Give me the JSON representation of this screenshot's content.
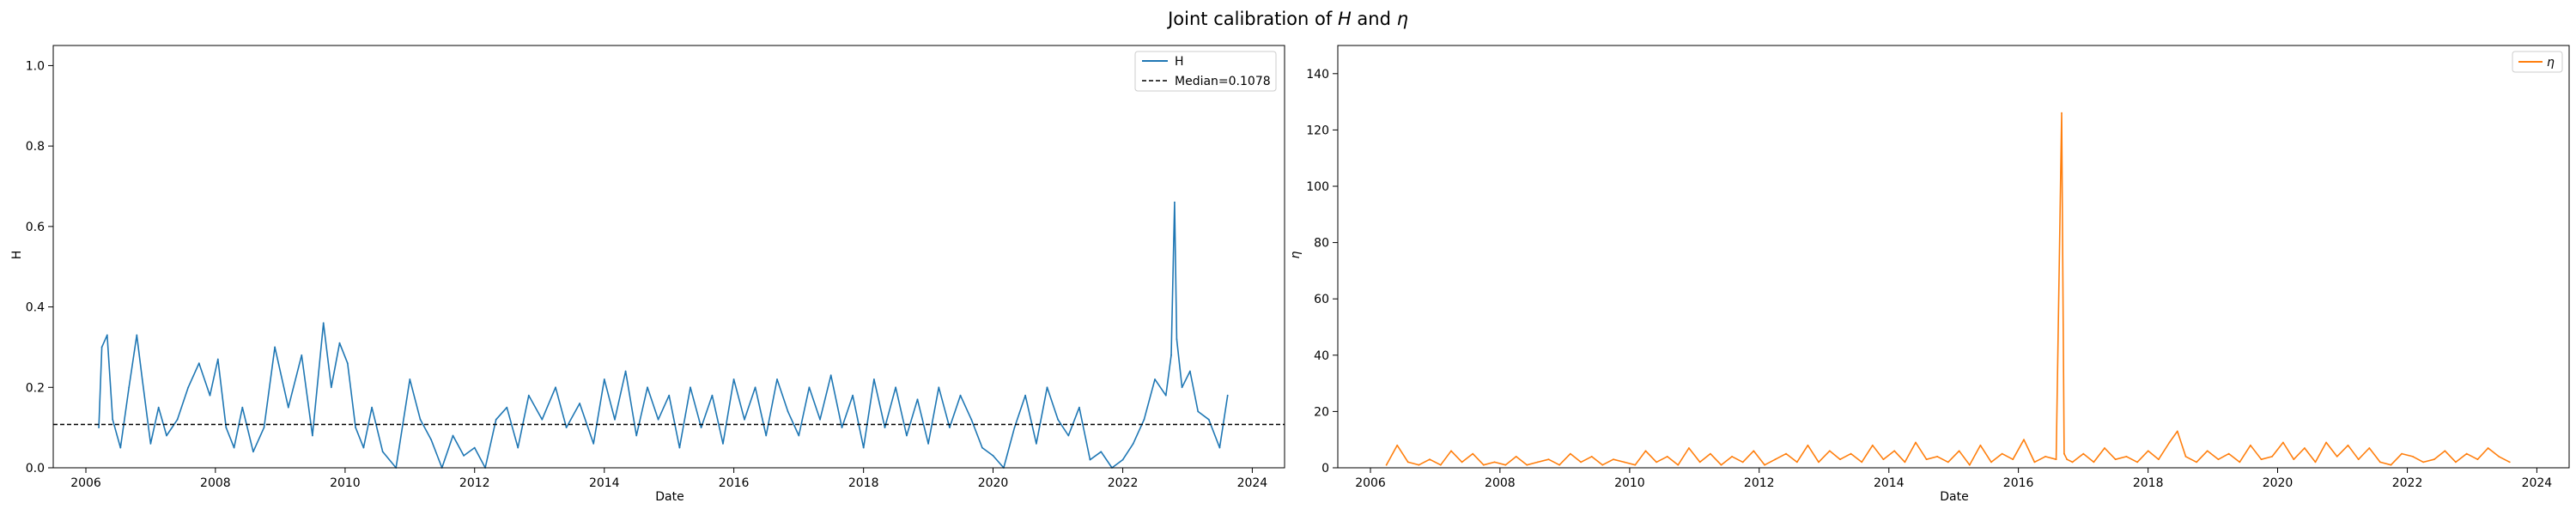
{
  "figure": {
    "title_prefix": "Joint calibration of ",
    "title_sym1": "H",
    "title_mid": " and ",
    "title_sym2": "η"
  },
  "chart_data": [
    {
      "type": "line",
      "title": "",
      "xlabel": "Date",
      "ylabel": "H",
      "xlim": [
        "2005-07-01",
        "2024-07-01"
      ],
      "ylim": [
        0,
        1.05
      ],
      "xticks": [
        "2006",
        "2008",
        "2010",
        "2012",
        "2014",
        "2016",
        "2018",
        "2020",
        "2022",
        "2024"
      ],
      "yticks": [
        "0.0",
        "0.2",
        "0.4",
        "0.6",
        "0.8",
        "1.0"
      ],
      "grid": false,
      "legend": "top-right",
      "reference_line": {
        "name": "Median=0.1078",
        "y": 0.1078,
        "color": "#000000",
        "style": "dashed"
      },
      "series": [
        {
          "name": "H",
          "color": "#1f77b4",
          "x": [
            "2006-03-15",
            "2006-04-01",
            "2006-05-01",
            "2006-06-01",
            "2006-07-15",
            "2006-09-01",
            "2006-10-15",
            "2006-11-15",
            "2007-01-01",
            "2007-02-15",
            "2007-04-01",
            "2007-06-01",
            "2007-08-01",
            "2007-10-01",
            "2007-12-01",
            "2008-01-15",
            "2008-03-01",
            "2008-04-15",
            "2008-06-01",
            "2008-08-01",
            "2008-10-01",
            "2008-12-01",
            "2009-02-15",
            "2009-05-01",
            "2009-07-01",
            "2009-09-01",
            "2009-10-15",
            "2009-12-01",
            "2010-01-15",
            "2010-03-01",
            "2010-04-15",
            "2010-06-01",
            "2010-08-01",
            "2010-10-15",
            "2011-01-01",
            "2011-03-01",
            "2011-05-01",
            "2011-07-01",
            "2011-09-01",
            "2011-11-01",
            "2012-01-01",
            "2012-03-01",
            "2012-05-01",
            "2012-07-01",
            "2012-09-01",
            "2012-11-01",
            "2013-01-15",
            "2013-04-01",
            "2013-06-01",
            "2013-08-15",
            "2013-11-01",
            "2014-01-01",
            "2014-03-01",
            "2014-05-01",
            "2014-07-01",
            "2014-09-01",
            "2014-11-01",
            "2015-01-01",
            "2015-03-01",
            "2015-05-01",
            "2015-07-01",
            "2015-09-01",
            "2015-11-01",
            "2016-01-01",
            "2016-03-01",
            "2016-05-01",
            "2016-07-01",
            "2016-09-01",
            "2016-11-01",
            "2017-01-01",
            "2017-03-01",
            "2017-05-01",
            "2017-07-01",
            "2017-09-01",
            "2017-11-01",
            "2018-01-01",
            "2018-03-01",
            "2018-05-01",
            "2018-07-01",
            "2018-09-01",
            "2018-11-01",
            "2019-01-01",
            "2019-03-01",
            "2019-05-01",
            "2019-07-01",
            "2019-09-01",
            "2019-11-01",
            "2020-01-01",
            "2020-03-01",
            "2020-05-01",
            "2020-07-01",
            "2020-09-01",
            "2020-11-01",
            "2021-01-01",
            "2021-03-01",
            "2021-05-01",
            "2021-07-01",
            "2021-09-01",
            "2021-11-01",
            "2022-01-01",
            "2022-03-01",
            "2022-05-01",
            "2022-07-01",
            "2022-09-01",
            "2022-10-01",
            "2022-10-20",
            "2022-11-01",
            "2022-12-01",
            "2023-01-15",
            "2023-03-01",
            "2023-05-01",
            "2023-07-01",
            "2023-08-15"
          ],
          "values": [
            0.1,
            0.3,
            0.33,
            0.12,
            0.05,
            0.2,
            0.33,
            0.22,
            0.06,
            0.15,
            0.08,
            0.12,
            0.2,
            0.26,
            0.18,
            0.27,
            0.1,
            0.05,
            0.15,
            0.04,
            0.1,
            0.3,
            0.15,
            0.28,
            0.08,
            0.36,
            0.2,
            0.31,
            0.26,
            0.1,
            0.05,
            0.15,
            0.04,
            0.0,
            0.22,
            0.12,
            0.07,
            0.0,
            0.08,
            0.03,
            0.05,
            0.0,
            0.12,
            0.15,
            0.05,
            0.18,
            0.12,
            0.2,
            0.1,
            0.16,
            0.06,
            0.22,
            0.12,
            0.24,
            0.08,
            0.2,
            0.12,
            0.18,
            0.05,
            0.2,
            0.1,
            0.18,
            0.06,
            0.22,
            0.12,
            0.2,
            0.08,
            0.22,
            0.14,
            0.08,
            0.2,
            0.12,
            0.23,
            0.1,
            0.18,
            0.05,
            0.22,
            0.1,
            0.2,
            0.08,
            0.17,
            0.06,
            0.2,
            0.1,
            0.18,
            0.12,
            0.05,
            0.03,
            0.0,
            0.1,
            0.18,
            0.06,
            0.2,
            0.12,
            0.08,
            0.15,
            0.02,
            0.04,
            0.0,
            0.02,
            0.06,
            0.12,
            0.22,
            0.18,
            0.28,
            0.66,
            0.32,
            0.2,
            0.24,
            0.14,
            0.12,
            0.05,
            0.18
          ]
        }
      ]
    },
    {
      "type": "line",
      "title": "",
      "xlabel": "Date",
      "ylabel": "η",
      "xlim": [
        "2005-07-01",
        "2024-07-01"
      ],
      "ylim": [
        0,
        150
      ],
      "xticks": [
        "2006",
        "2008",
        "2010",
        "2012",
        "2014",
        "2016",
        "2018",
        "2020",
        "2022",
        "2024"
      ],
      "yticks": [
        "0",
        "20",
        "40",
        "60",
        "80",
        "100",
        "120",
        "140"
      ],
      "grid": false,
      "legend": "top-right",
      "series": [
        {
          "name": "η",
          "color": "#ff7f0e",
          "x": [
            "2006-04-01",
            "2006-06-01",
            "2006-08-01",
            "2006-10-01",
            "2006-12-01",
            "2007-02-01",
            "2007-04-01",
            "2007-06-01",
            "2007-08-01",
            "2007-10-01",
            "2007-12-01",
            "2008-02-01",
            "2008-04-01",
            "2008-06-01",
            "2008-08-01",
            "2008-10-01",
            "2008-12-01",
            "2009-02-01",
            "2009-04-01",
            "2009-06-01",
            "2009-08-01",
            "2009-10-01",
            "2009-12-01",
            "2010-02-01",
            "2010-04-01",
            "2010-06-01",
            "2010-08-01",
            "2010-10-01",
            "2010-12-01",
            "2011-02-01",
            "2011-04-01",
            "2011-06-01",
            "2011-08-01",
            "2011-10-01",
            "2011-12-01",
            "2012-02-01",
            "2012-04-01",
            "2012-06-01",
            "2012-08-01",
            "2012-10-01",
            "2012-12-01",
            "2013-02-01",
            "2013-04-01",
            "2013-06-01",
            "2013-08-01",
            "2013-10-01",
            "2013-12-01",
            "2014-02-01",
            "2014-04-01",
            "2014-06-01",
            "2014-08-01",
            "2014-10-01",
            "2014-12-01",
            "2015-02-01",
            "2015-04-01",
            "2015-06-01",
            "2015-08-01",
            "2015-10-01",
            "2015-12-01",
            "2016-02-01",
            "2016-04-01",
            "2016-06-01",
            "2016-08-01",
            "2016-09-01",
            "2016-09-15",
            "2016-10-01",
            "2016-11-01",
            "2017-01-01",
            "2017-03-01",
            "2017-05-01",
            "2017-07-01",
            "2017-09-01",
            "2017-11-01",
            "2018-01-01",
            "2018-03-01",
            "2018-05-01",
            "2018-06-15",
            "2018-08-01",
            "2018-10-01",
            "2018-12-01",
            "2019-02-01",
            "2019-04-01",
            "2019-06-01",
            "2019-08-01",
            "2019-10-01",
            "2019-12-01",
            "2020-02-01",
            "2020-04-01",
            "2020-06-01",
            "2020-08-01",
            "2020-10-01",
            "2020-12-01",
            "2021-02-01",
            "2021-04-01",
            "2021-06-01",
            "2021-08-01",
            "2021-10-01",
            "2021-12-01",
            "2022-02-01",
            "2022-04-01",
            "2022-06-01",
            "2022-08-01",
            "2022-10-01",
            "2022-12-01",
            "2023-02-01",
            "2023-04-01",
            "2023-06-01",
            "2023-08-01"
          ],
          "values": [
            1,
            8,
            2,
            1,
            3,
            1,
            6,
            2,
            5,
            1,
            2,
            1,
            4,
            1,
            2,
            3,
            1,
            5,
            2,
            4,
            1,
            3,
            2,
            1,
            6,
            2,
            4,
            1,
            7,
            2,
            5,
            1,
            4,
            2,
            6,
            1,
            3,
            5,
            2,
            8,
            2,
            6,
            3,
            5,
            2,
            8,
            3,
            6,
            2,
            9,
            3,
            4,
            2,
            6,
            1,
            8,
            2,
            5,
            3,
            10,
            2,
            4,
            3,
            126,
            5,
            3,
            2,
            5,
            2,
            7,
            3,
            4,
            2,
            6,
            3,
            9,
            13,
            4,
            2,
            6,
            3,
            5,
            2,
            8,
            3,
            4,
            9,
            3,
            7,
            2,
            9,
            4,
            8,
            3,
            7,
            2,
            1,
            5,
            4,
            2,
            3,
            6,
            2,
            5,
            3,
            7,
            4,
            2
          ]
        }
      ]
    }
  ]
}
